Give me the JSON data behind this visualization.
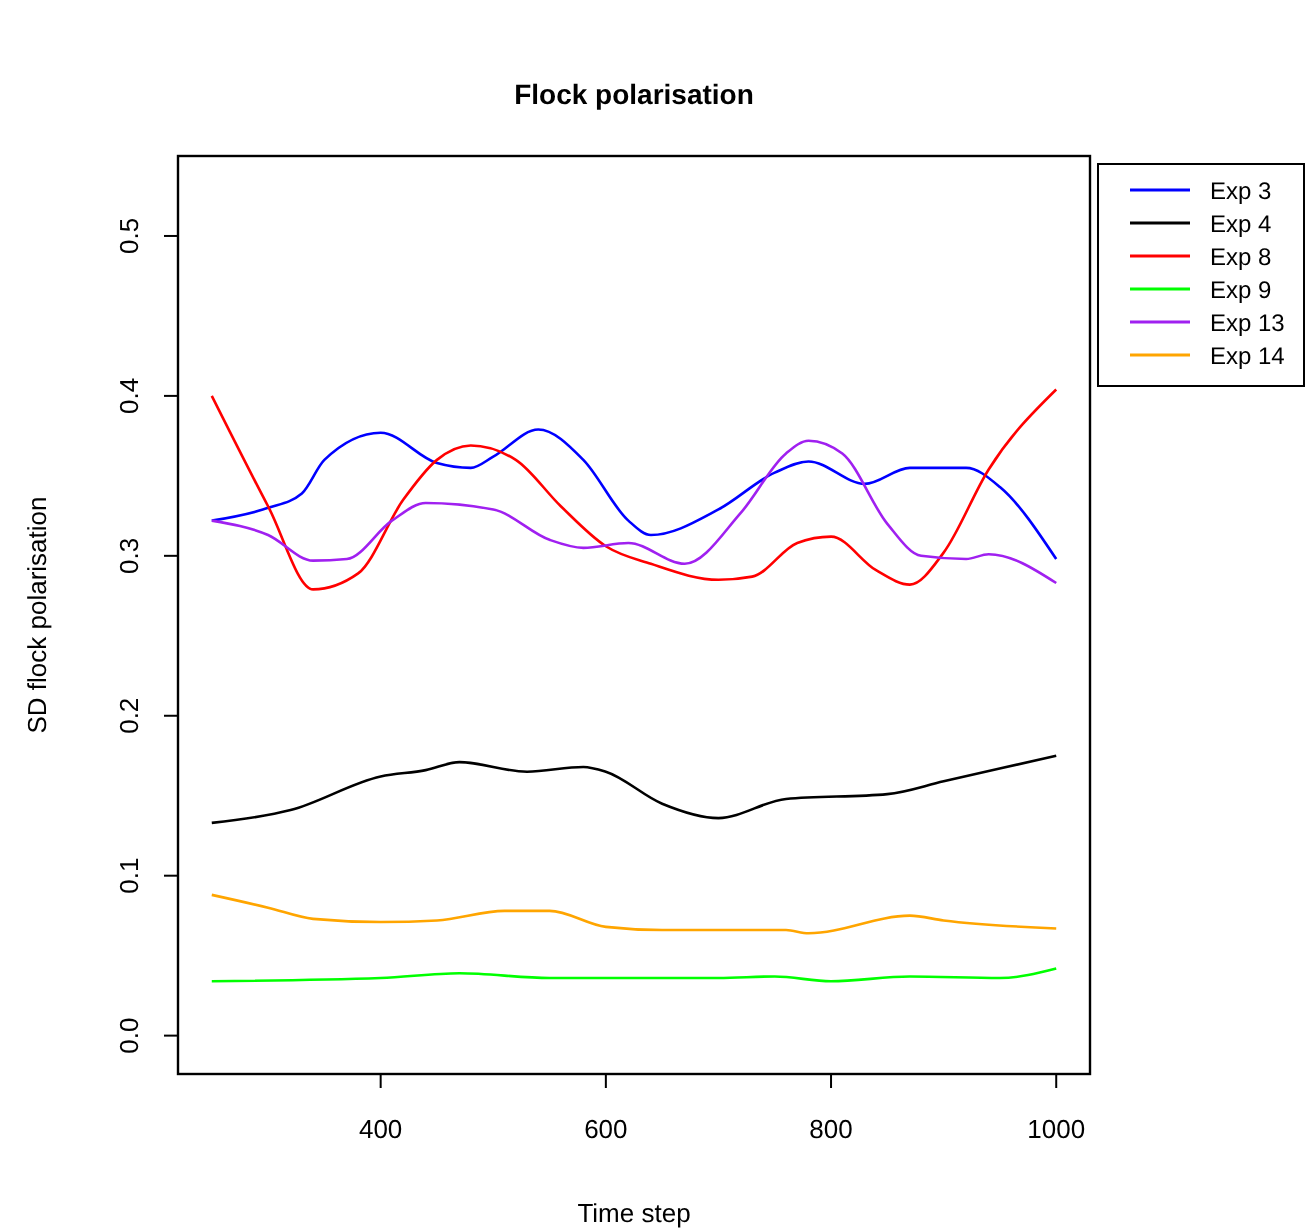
{
  "chart_data": {
    "type": "line",
    "title": "Flock polarisation",
    "xlabel": "Time step",
    "ylabel": "SD flock polarisation",
    "xlim": [
      220,
      1030
    ],
    "ylim": [
      -0.024,
      0.55
    ],
    "xticks": [
      400,
      600,
      800,
      1000
    ],
    "yticks": [
      {
        "value": 0,
        "label": "0.0"
      },
      0.1,
      0.2,
      0.3,
      0.4,
      0.5
    ],
    "grid": false,
    "legend": "top right",
    "line_style": "solid",
    "marker": "none",
    "series": [
      {
        "name": "Exp 3",
        "color": "#0000ff",
        "x": [
          250,
          300,
          330,
          350,
          400,
          450,
          480,
          500,
          540,
          580,
          620,
          640,
          700,
          750,
          780,
          830,
          870,
          920,
          950,
          1000
        ],
        "values": [
          0.322,
          0.33,
          0.339,
          0.36,
          0.377,
          0.358,
          0.355,
          0.362,
          0.379,
          0.36,
          0.322,
          0.313,
          0.329,
          0.352,
          0.359,
          0.345,
          0.355,
          0.355,
          0.343,
          0.298
        ]
      },
      {
        "name": "Exp 4",
        "color": "#000000",
        "x": [
          250,
          320,
          400,
          440,
          470,
          530,
          580,
          600,
          650,
          700,
          760,
          850,
          900,
          1000
        ],
        "values": [
          0.133,
          0.141,
          0.162,
          0.166,
          0.171,
          0.165,
          0.168,
          0.165,
          0.145,
          0.136,
          0.148,
          0.151,
          0.159,
          0.175
        ]
      },
      {
        "name": "Exp 8",
        "color": "#ff0000",
        "x": [
          250,
          300,
          340,
          380,
          420,
          450,
          480,
          520,
          560,
          600,
          640,
          700,
          730,
          770,
          800,
          840,
          870,
          900,
          940,
          1000
        ],
        "values": [
          0.4,
          0.331,
          0.279,
          0.289,
          0.335,
          0.36,
          0.369,
          0.36,
          0.331,
          0.306,
          0.295,
          0.285,
          0.287,
          0.308,
          0.312,
          0.291,
          0.282,
          0.302,
          0.354,
          0.404
        ]
      },
      {
        "name": "Exp 9",
        "color": "#00ff00",
        "x": [
          250,
          400,
          470,
          550,
          700,
          750,
          800,
          870,
          950,
          1000
        ],
        "values": [
          0.034,
          0.036,
          0.039,
          0.036,
          0.036,
          0.037,
          0.034,
          0.037,
          0.036,
          0.042
        ]
      },
      {
        "name": "Exp 13",
        "color": "#a020f0",
        "x": [
          250,
          300,
          340,
          370,
          410,
          440,
          500,
          550,
          580,
          620,
          670,
          720,
          760,
          780,
          810,
          850,
          880,
          920,
          940,
          1000
        ],
        "values": [
          0.322,
          0.313,
          0.297,
          0.298,
          0.322,
          0.333,
          0.329,
          0.31,
          0.305,
          0.308,
          0.295,
          0.327,
          0.364,
          0.372,
          0.364,
          0.32,
          0.3,
          0.298,
          0.301,
          0.283
        ]
      },
      {
        "name": "Exp 14",
        "color": "#ffa500",
        "x": [
          250,
          300,
          340,
          400,
          450,
          510,
          550,
          600,
          650,
          760,
          780,
          870,
          900,
          1000
        ],
        "values": [
          0.088,
          0.08,
          0.073,
          0.071,
          0.072,
          0.078,
          0.078,
          0.068,
          0.066,
          0.066,
          0.064,
          0.075,
          0.072,
          0.067
        ]
      }
    ]
  }
}
